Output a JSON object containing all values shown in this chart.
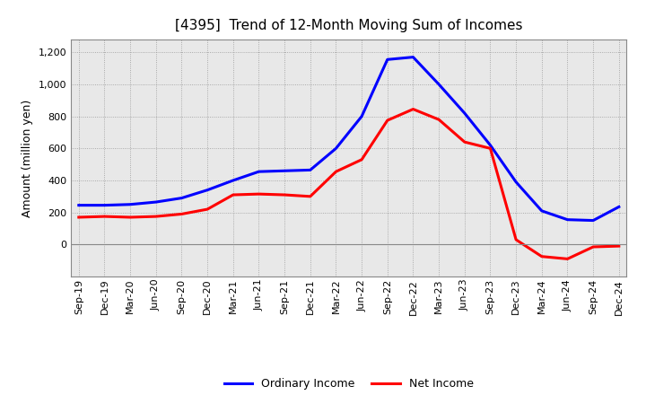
{
  "title": "[4395]  Trend of 12-Month Moving Sum of Incomes",
  "ylabel": "Amount (million yen)",
  "x_labels": [
    "Sep-19",
    "Dec-19",
    "Mar-20",
    "Jun-20",
    "Sep-20",
    "Dec-20",
    "Mar-21",
    "Jun-21",
    "Sep-21",
    "Dec-21",
    "Mar-22",
    "Jun-22",
    "Sep-22",
    "Dec-22",
    "Mar-23",
    "Jun-23",
    "Sep-23",
    "Dec-23",
    "Mar-24",
    "Jun-24",
    "Sep-24",
    "Dec-24"
  ],
  "ordinary_income": [
    245,
    245,
    250,
    265,
    290,
    340,
    400,
    455,
    460,
    465,
    600,
    800,
    1155,
    1170,
    1000,
    820,
    620,
    390,
    210,
    155,
    150,
    235
  ],
  "net_income": [
    170,
    175,
    170,
    175,
    190,
    220,
    310,
    315,
    310,
    300,
    455,
    530,
    775,
    845,
    780,
    640,
    600,
    30,
    -75,
    -90,
    -15,
    -10
  ],
  "ordinary_color": "#0000FF",
  "net_color": "#FF0000",
  "ylim": [
    -200,
    1280
  ],
  "yticks": [
    0,
    200,
    400,
    600,
    800,
    1000,
    1200
  ],
  "background_color": "#ffffff",
  "plot_bg_color": "#e8e8e8",
  "grid_color": "#999999",
  "line_width": 2.2,
  "title_fontsize": 11,
  "axis_fontsize": 8,
  "ylabel_fontsize": 9
}
